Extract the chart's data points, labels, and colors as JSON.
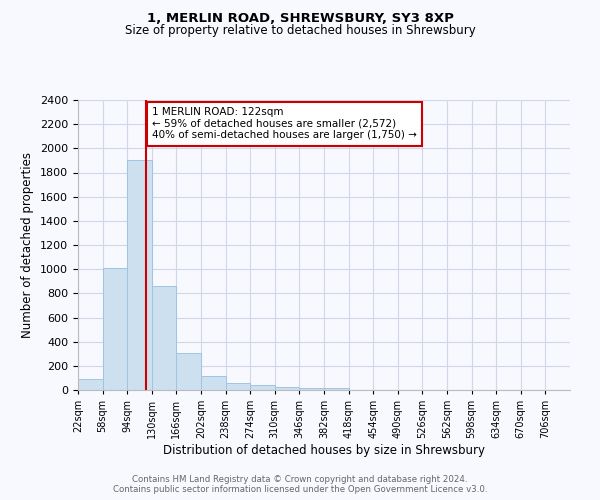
{
  "title1": "1, MERLIN ROAD, SHREWSBURY, SY3 8XP",
  "title2": "Size of property relative to detached houses in Shrewsbury",
  "xlabel": "Distribution of detached houses by size in Shrewsbury",
  "ylabel": "Number of detached properties",
  "annotation_line1": "1 MERLIN ROAD: 122sqm",
  "annotation_line2": "← 59% of detached houses are smaller (2,572)",
  "annotation_line3": "40% of semi-detached houses are larger (1,750) →",
  "property_value": 122,
  "bar_edges": [
    22,
    58,
    94,
    130,
    166,
    202,
    238,
    274,
    310,
    346,
    382,
    418,
    454,
    490,
    526,
    562,
    598,
    634,
    670,
    706,
    742
  ],
  "bar_heights": [
    90,
    1010,
    1900,
    860,
    310,
    115,
    55,
    42,
    22,
    15,
    20,
    0,
    0,
    0,
    0,
    0,
    0,
    0,
    0,
    0
  ],
  "bar_color": "#cce0f0",
  "bar_edgecolor": "#a0c4e0",
  "vline_color": "#cc0000",
  "vline_x": 122,
  "annotation_box_edgecolor": "#cc0000",
  "annotation_box_facecolor": "white",
  "ylim": [
    0,
    2400
  ],
  "yticks": [
    0,
    200,
    400,
    600,
    800,
    1000,
    1200,
    1400,
    1600,
    1800,
    2000,
    2200,
    2400
  ],
  "grid_color": "#d0d8e8",
  "bg_color": "#f8f8ff",
  "footer1": "Contains HM Land Registry data © Crown copyright and database right 2024.",
  "footer2": "Contains public sector information licensed under the Open Government Licence v3.0."
}
